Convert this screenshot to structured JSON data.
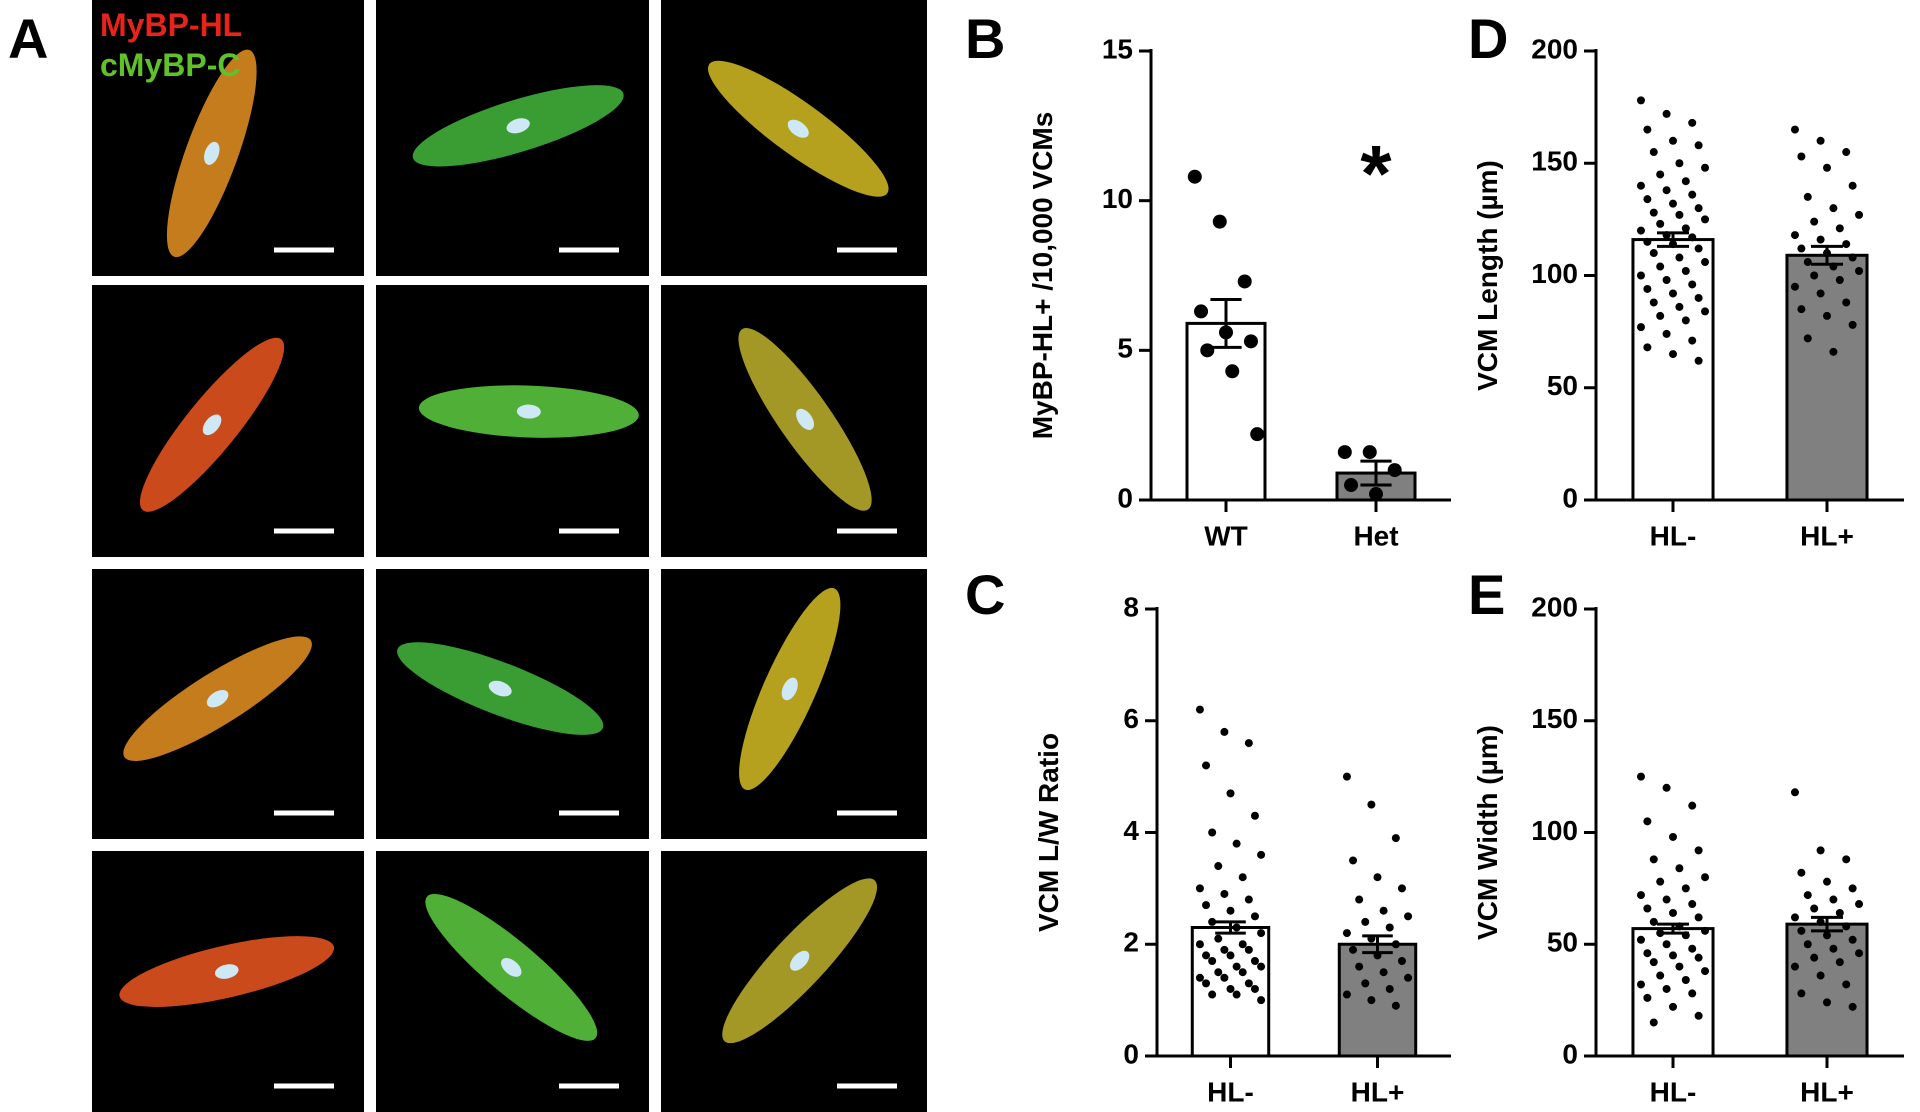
{
  "panel_a": {
    "label": "A",
    "legend": [
      {
        "name": "MyBP-HL",
        "color": "#e8231c"
      },
      {
        "name": "cMyBP-C",
        "color": "#5fc22a"
      }
    ]
  },
  "chart_data": [
    {
      "type": "bar",
      "panel": "B",
      "ylabel": "MyBP-HL+ /10,000 VCMs",
      "annotation": "*",
      "categories": [
        "WT",
        "Het"
      ],
      "values": [
        5.9,
        0.9
      ],
      "errors": [
        0.8,
        0.4
      ],
      "colors": [
        "#ffffff",
        "#808080"
      ],
      "points": [
        [
          10.8,
          9.3,
          7.3,
          6.3,
          5.6,
          5.3,
          5.0,
          4.3,
          2.2
        ],
        [
          1.6,
          1.6,
          1.0,
          0.5,
          0.2
        ]
      ],
      "ylim": [
        0,
        15
      ],
      "yticks": [
        0,
        5,
        10,
        15
      ]
    },
    {
      "type": "bar",
      "panel": "C",
      "ylabel": "VCM L/W Ratio",
      "categories": [
        "HL-",
        "HL+"
      ],
      "values": [
        2.3,
        2.0
      ],
      "errors": [
        0.1,
        0.15
      ],
      "colors": [
        "#ffffff",
        "#808080"
      ],
      "points": [
        [
          6.2,
          5.8,
          5.6,
          5.2,
          4.7,
          4.3,
          4.0,
          3.8,
          3.6,
          3.4,
          3.2,
          3.0,
          2.9,
          2.8,
          2.7,
          2.6,
          2.5,
          2.4,
          2.3,
          2.2,
          2.1,
          2.0,
          2.0,
          1.9,
          1.9,
          1.8,
          1.8,
          1.7,
          1.7,
          1.6,
          1.6,
          1.5,
          1.5,
          1.4,
          1.4,
          1.3,
          1.3,
          1.2,
          1.2,
          1.1,
          1.1,
          1.0
        ],
        [
          5.0,
          4.5,
          3.9,
          3.5,
          3.2,
          3.0,
          2.8,
          2.6,
          2.5,
          2.4,
          2.3,
          2.2,
          2.1,
          2.0,
          1.9,
          1.8,
          1.7,
          1.6,
          1.5,
          1.4,
          1.3,
          1.2,
          1.1,
          1.0,
          0.9
        ]
      ],
      "ylim": [
        0,
        8
      ],
      "yticks": [
        0,
        2,
        4,
        6,
        8
      ]
    },
    {
      "type": "bar",
      "panel": "D",
      "ylabel": "VCM Length (µm)",
      "categories": [
        "HL-",
        "HL+"
      ],
      "values": [
        116,
        109
      ],
      "errors": [
        3,
        4
      ],
      "colors": [
        "#ffffff",
        "#808080"
      ],
      "points": [
        [
          178,
          172,
          168,
          165,
          160,
          158,
          155,
          150,
          148,
          145,
          142,
          140,
          138,
          136,
          134,
          132,
          130,
          128,
          127,
          125,
          123,
          121,
          120,
          118,
          117,
          115,
          114,
          112,
          110,
          108,
          106,
          104,
          102,
          100,
          98,
          96,
          94,
          92,
          90,
          88,
          86,
          84,
          82,
          80,
          77,
          74,
          71,
          68,
          65,
          62
        ],
        [
          165,
          160,
          155,
          153,
          148,
          140,
          135,
          130,
          127,
          124,
          121,
          118,
          116,
          114,
          112,
          110,
          108,
          106,
          104,
          102,
          100,
          98,
          95,
          92,
          88,
          85,
          82,
          78,
          72,
          66
        ]
      ],
      "ylim": [
        0,
        200
      ],
      "yticks": [
        0,
        50,
        100,
        150,
        200
      ]
    },
    {
      "type": "bar",
      "panel": "E",
      "ylabel": "VCM Width (µm)",
      "categories": [
        "HL-",
        "HL+"
      ],
      "values": [
        57,
        59
      ],
      "errors": [
        2,
        3
      ],
      "colors": [
        "#ffffff",
        "#808080"
      ],
      "points": [
        [
          125,
          120,
          112,
          105,
          98,
          92,
          88,
          84,
          80,
          78,
          75,
          72,
          70,
          68,
          66,
          64,
          62,
          60,
          58,
          56,
          55,
          54,
          52,
          50,
          48,
          46,
          45,
          44,
          42,
          40,
          38,
          36,
          34,
          32,
          30,
          28,
          26,
          22,
          18,
          15
        ],
        [
          118,
          92,
          88,
          82,
          78,
          75,
          72,
          70,
          68,
          66,
          64,
          62,
          60,
          58,
          56,
          54,
          52,
          50,
          48,
          46,
          44,
          42,
          40,
          36,
          32,
          28,
          24,
          22
        ]
      ],
      "ylim": [
        0,
        200
      ],
      "yticks": [
        0,
        50,
        100,
        150,
        200
      ]
    }
  ]
}
